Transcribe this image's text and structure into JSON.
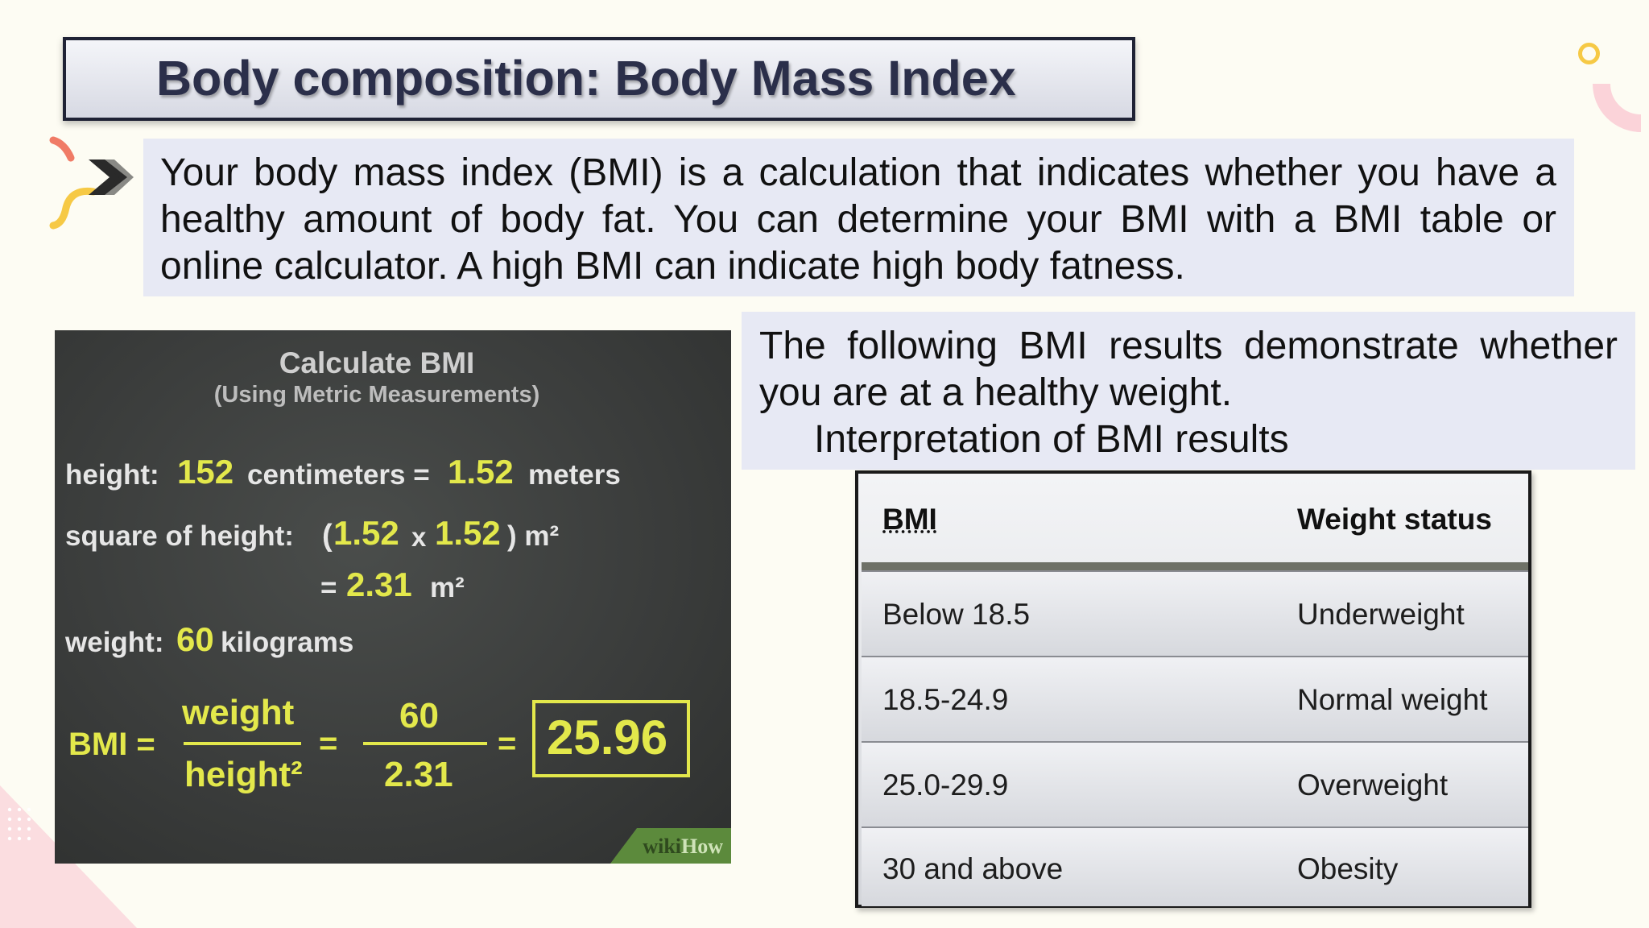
{
  "slide": {
    "title": "Body composition: Body Mass Index",
    "intro": "Your body mass index (BMI) is a calculation that indicates whether you have a healthy amount of body fat. You can determine your BMI with a BMI table or online calculator. A high BMI can indicate high body fatness.",
    "results_line1": "The following BMI results demonstrate whether",
    "results_line2": "you are at a healthy weight.",
    "results_heading": "Interpretation of BMI results"
  },
  "calc_image": {
    "title": "Calculate BMI",
    "subtitle": "(Using Metric Measurements)",
    "height_label": "height:",
    "height_cm": "152",
    "cm_unit": "centimeters =",
    "height_m": "1.52",
    "m_unit": "meters",
    "square_label": "square of height:",
    "open_paren": "(",
    "sq_a": "1.52",
    "times": "x",
    "sq_b": "1.52",
    "close_unit": ") m²",
    "equals": "=",
    "sq_result": "2.31",
    "sq_unit": "m²",
    "weight_label": "weight:",
    "weight_value": "60",
    "weight_unit": "kilograms",
    "bmi_label": "BMI =",
    "frac_num": "weight",
    "frac_den": "height²",
    "eq2": "=",
    "num_val": "60",
    "den_val": "2.31",
    "eq3": "=",
    "result": "25.96",
    "wm_a": "wiki",
    "wm_b": "How"
  },
  "table": {
    "headers": [
      "BMI",
      "Weight status"
    ],
    "rows": [
      [
        "Below 18.5",
        "Underweight"
      ],
      [
        "18.5-24.9",
        "Normal weight"
      ],
      [
        "25.0-29.9",
        "Overweight"
      ],
      [
        "30 and above",
        "Obesity"
      ]
    ]
  },
  "colors": {
    "chalk_yellow": "#e3e84b",
    "panel_bg": "#e7e9f4",
    "title_text": "#2b2f4a"
  }
}
